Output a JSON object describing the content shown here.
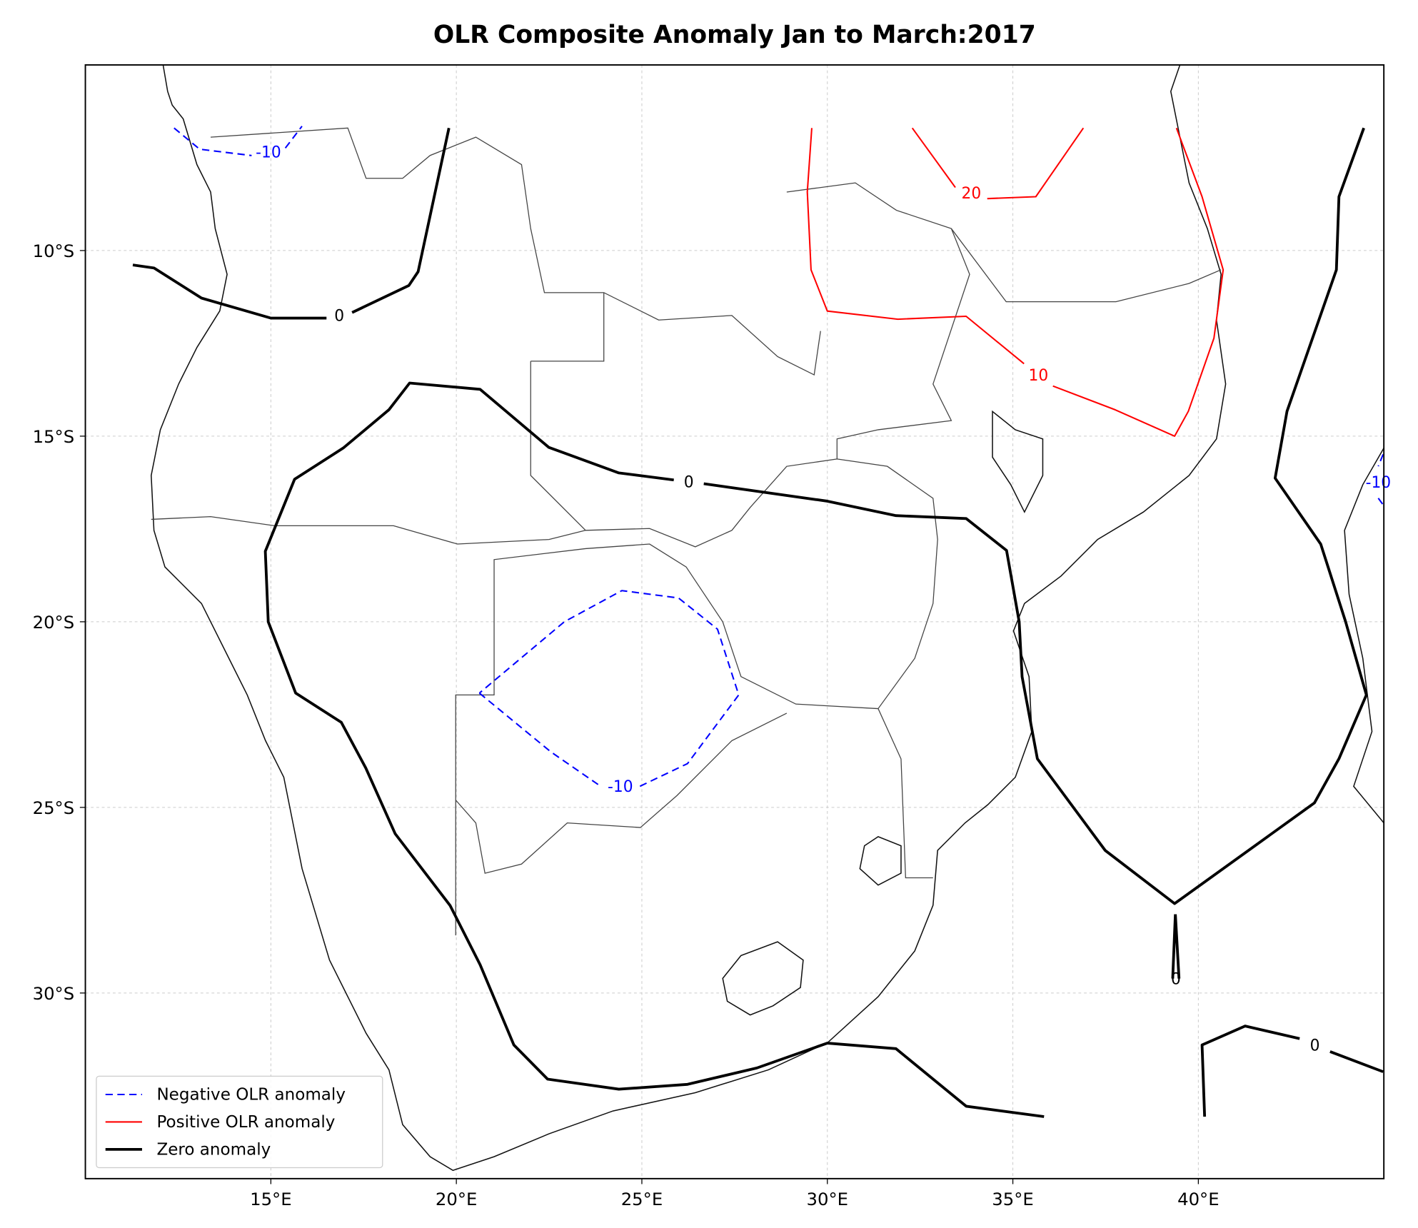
{
  "chart_data": {
    "type": "contour",
    "title": "OLR Composite Anomaly Jan to March:2017",
    "xlim": [
      10,
      45
    ],
    "ylim": [
      -35,
      -5
    ],
    "xticks": [
      {
        "value": 15,
        "label": "15°E"
      },
      {
        "value": 20,
        "label": "20°E"
      },
      {
        "value": 25,
        "label": "25°E"
      },
      {
        "value": 30,
        "label": "30°E"
      },
      {
        "value": 35,
        "label": "35°E"
      },
      {
        "value": 40,
        "label": "40°E"
      }
    ],
    "yticks": [
      {
        "value": -10,
        "label": "10°S"
      },
      {
        "value": -15,
        "label": "15°S"
      },
      {
        "value": -20,
        "label": "20°S"
      },
      {
        "value": -25,
        "label": "25°S"
      },
      {
        "value": -30,
        "label": "30°S"
      }
    ],
    "grid": true,
    "legend": "lower left",
    "series": [
      {
        "name": "Negative OLR anomaly",
        "color": "#0000ff",
        "style": "dashed",
        "width": 1.6,
        "contours": [
          {
            "level": -10,
            "x": [
              12.39,
              13.08,
              14.48,
              null,
              15.39,
              15.84
            ],
            "y": [
              -6.7,
              -7.27,
              -7.44,
              null,
              -7.24,
              -6.65
            ]
          },
          {
            "level": -10,
            "x": [
              20.62,
              22.54,
              23.89,
              null,
              24.95,
              26.23,
              27.61,
              27.04,
              25.99,
              24.46,
              22.91,
              20.62
            ],
            "y": [
              -21.92,
              -23.5,
              -24.43,
              null,
              -24.43,
              -23.82,
              -21.97,
              -20.2,
              -19.36,
              -19.16,
              -20.0,
              -21.92
            ]
          },
          {
            "level": -10,
            "x": [
              44.98,
              44.85,
              null,
              44.85,
              44.98
            ],
            "y": [
              -15.49,
              -15.81,
              null,
              -16.67,
              -16.85
            ]
          }
        ]
      },
      {
        "name": "Positive OLR anomaly",
        "color": "#ff0000",
        "style": "solid",
        "width": 1.6,
        "contours": [
          {
            "level": 20,
            "x": [
              32.29,
              33.45,
              null,
              34.31,
              35.62,
              36.9
            ],
            "y": [
              -6.7,
              -8.3,
              null,
              -8.6,
              -8.55,
              -6.7
            ]
          },
          {
            "level": 10,
            "x": [
              29.58,
              29.46,
              29.56,
              30.0,
              31.9,
              33.74,
              35.3,
              null,
              36.08,
              37.76,
              39.36,
              39.73,
              40.42,
              40.67,
              40.1,
              39.41
            ],
            "y": [
              -6.7,
              -8.42,
              -10.52,
              -11.63,
              -11.85,
              -11.77,
              -13.05,
              null,
              -13.65,
              -14.29,
              -15.0,
              -14.33,
              -12.36,
              -10.52,
              -8.55,
              -6.7
            ]
          }
        ]
      },
      {
        "name": "Zero anomaly",
        "color": "#000000",
        "style": "solid",
        "width": 3,
        "contours": [
          {
            "level": 0,
            "x": [
              11.28,
              11.85,
              13.13,
              15.0,
              16.5,
              null,
              17.19,
              18.72,
              18.97,
              19.8
            ],
            "y": [
              -10.39,
              -10.47,
              -11.28,
              -11.82,
              -11.82,
              null,
              -11.67,
              -10.94,
              -10.57,
              -6.7
            ]
          },
          {
            "level": 0,
            "x": [
              35.84,
              33.74,
              31.85,
              30.0,
              28.1,
              26.23,
              24.38,
              22.46,
              21.55,
              20.64,
              19.83,
              18.35,
              17.56,
              16.9,
              15.67,
              14.93,
              14.85,
              15.64,
              16.95,
              18.18,
              18.74,
              20.64,
              22.49,
              24.38,
              25.86,
              null,
              26.67,
              30.0,
              31.85,
              33.74,
              34.83,
              35.17,
              35.25,
              35.66,
              37.49,
              39.36,
              43.13,
              43.79,
              44.53,
              43.97,
              43.3,
              42.07,
              42.39,
              43.72,
              43.79,
              44.46
            ],
            "y": [
              -33.33,
              -33.05,
              -31.5,
              -31.35,
              -32.02,
              -32.46,
              -32.59,
              -32.32,
              -31.4,
              -29.24,
              -27.64,
              -25.71,
              -23.94,
              -22.71,
              -21.92,
              -20.0,
              -18.1,
              -16.16,
              -15.32,
              -14.29,
              -13.57,
              -13.74,
              -15.3,
              -15.99,
              -16.18,
              null,
              -16.28,
              -16.75,
              -17.14,
              -17.22,
              -18.08,
              -20.0,
              -21.48,
              -23.69,
              -26.16,
              -27.59,
              -24.88,
              -23.69,
              -21.97,
              -20.0,
              -17.91,
              -16.13,
              -14.33,
              -10.52,
              -8.55,
              -6.7
            ]
          },
          {
            "level": 0,
            "x": [
              39.38,
              39.31,
              null,
              39.48,
              39.38
            ],
            "y": [
              -27.88,
              -29.61,
              null,
              -29.61,
              -27.88
            ]
          },
          {
            "level": 0,
            "x": [
              40.17,
              40.1,
              41.26,
              42.73,
              null,
              43.55,
              44.98
            ],
            "y": [
              -33.33,
              -31.4,
              -30.89,
              -31.23,
              null,
              -31.58,
              -32.12
            ]
          }
        ]
      }
    ]
  }
}
